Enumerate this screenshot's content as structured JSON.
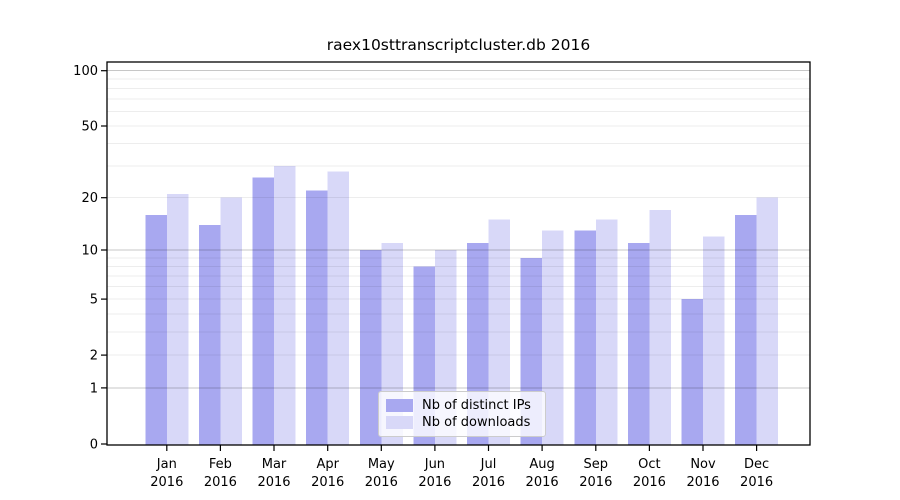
{
  "title": "raex10sttranscriptcluster.db 2016",
  "chart_data": {
    "type": "bar",
    "title": "raex10sttranscriptcluster.db 2016",
    "categories": [
      "Jan",
      "Feb",
      "Mar",
      "Apr",
      "May",
      "Jun",
      "Jul",
      "Aug",
      "Sep",
      "Oct",
      "Nov",
      "Dec"
    ],
    "category_year": "2016",
    "series": [
      {
        "name": "Nb of distinct IPs",
        "color": "#a8a8f0",
        "values": [
          16,
          14,
          26,
          22,
          10,
          8,
          11,
          9,
          13,
          11,
          5,
          16
        ]
      },
      {
        "name": "Nb of downloads",
        "color": "#d8d8f8",
        "values": [
          21,
          20,
          30,
          28,
          11,
          10,
          15,
          13,
          15,
          17,
          12,
          20
        ]
      }
    ],
    "yscale": "log1p",
    "ylim": [
      0,
      111
    ],
    "yticks": [
      0,
      1,
      2,
      5,
      10,
      20,
      50,
      100
    ],
    "major_gridlines": [
      1,
      10,
      100
    ],
    "minor_gridlines": [
      2,
      3,
      4,
      5,
      6,
      7,
      8,
      9,
      20,
      30,
      40,
      50,
      60,
      70,
      80,
      90
    ],
    "grid": true,
    "legend_position": "lower center",
    "colors": {
      "axis": "#000000",
      "major_grid": "rgba(0,0,0,0.22)",
      "minor_grid": "rgba(0,0,0,0.07)",
      "text": "#000000"
    }
  }
}
